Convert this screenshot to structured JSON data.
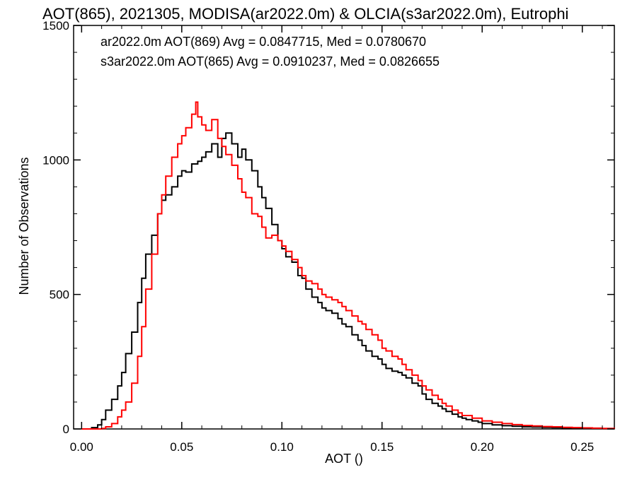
{
  "chart_data": {
    "type": "histogram",
    "title": "AOT(865), 2021305, MODISA(ar2022.0m) & OLCIA(s3ar2022.0m), Eutrophi",
    "xlabel": "AOT ()",
    "ylabel": "Number of Observations",
    "xlim": [
      -0.004,
      0.266
    ],
    "ylim": [
      0,
      1500
    ],
    "xticks": [
      {
        "value": 0.0,
        "label": "0.00"
      },
      {
        "value": 0.05,
        "label": "0.05"
      },
      {
        "value": 0.1,
        "label": "0.10"
      },
      {
        "value": 0.15,
        "label": "0.15"
      },
      {
        "value": 0.2,
        "label": "0.20"
      },
      {
        "value": 0.25,
        "label": "0.25"
      }
    ],
    "yticks": [
      {
        "value": 0,
        "label": "0"
      },
      {
        "value": 500,
        "label": "500"
      },
      {
        "value": 1000,
        "label": "1000"
      },
      {
        "value": 1500,
        "label": "1500"
      }
    ],
    "grid": false,
    "legend_position": "top-left",
    "series": [
      {
        "name": "ar2022.0m AOT(869)",
        "color": "#000000",
        "stats_text": "ar2022.0m AOT(869) Avg = 0.0847715, Med = 0.0780670",
        "points": [
          [
            0.0,
            0
          ],
          [
            0.005,
            5
          ],
          [
            0.008,
            15
          ],
          [
            0.01,
            35
          ],
          [
            0.012,
            70
          ],
          [
            0.015,
            110
          ],
          [
            0.018,
            160
          ],
          [
            0.02,
            210
          ],
          [
            0.022,
            280
          ],
          [
            0.025,
            360
          ],
          [
            0.028,
            470
          ],
          [
            0.03,
            560
          ],
          [
            0.032,
            650
          ],
          [
            0.035,
            720
          ],
          [
            0.038,
            800
          ],
          [
            0.04,
            850
          ],
          [
            0.042,
            870
          ],
          [
            0.045,
            900
          ],
          [
            0.048,
            940
          ],
          [
            0.05,
            960
          ],
          [
            0.052,
            955
          ],
          [
            0.055,
            985
          ],
          [
            0.058,
            995
          ],
          [
            0.06,
            1010
          ],
          [
            0.062,
            1030
          ],
          [
            0.065,
            1060
          ],
          [
            0.068,
            1010
          ],
          [
            0.07,
            1080
          ],
          [
            0.072,
            1100
          ],
          [
            0.075,
            1060
          ],
          [
            0.078,
            1010
          ],
          [
            0.08,
            1040
          ],
          [
            0.082,
            1000
          ],
          [
            0.085,
            960
          ],
          [
            0.088,
            900
          ],
          [
            0.09,
            860
          ],
          [
            0.092,
            820
          ],
          [
            0.095,
            760
          ],
          [
            0.098,
            700
          ],
          [
            0.1,
            670
          ],
          [
            0.102,
            640
          ],
          [
            0.105,
            620
          ],
          [
            0.108,
            570
          ],
          [
            0.11,
            560
          ],
          [
            0.112,
            520
          ],
          [
            0.115,
            490
          ],
          [
            0.118,
            470
          ],
          [
            0.12,
            450
          ],
          [
            0.122,
            440
          ],
          [
            0.125,
            430
          ],
          [
            0.128,
            410
          ],
          [
            0.13,
            390
          ],
          [
            0.132,
            380
          ],
          [
            0.135,
            350
          ],
          [
            0.138,
            330
          ],
          [
            0.14,
            310
          ],
          [
            0.142,
            290
          ],
          [
            0.145,
            270
          ],
          [
            0.148,
            260
          ],
          [
            0.15,
            240
          ],
          [
            0.152,
            225
          ],
          [
            0.155,
            215
          ],
          [
            0.158,
            210
          ],
          [
            0.16,
            200
          ],
          [
            0.162,
            190
          ],
          [
            0.165,
            170
          ],
          [
            0.168,
            160
          ],
          [
            0.17,
            130
          ],
          [
            0.172,
            110
          ],
          [
            0.175,
            95
          ],
          [
            0.178,
            85
          ],
          [
            0.18,
            75
          ],
          [
            0.182,
            65
          ],
          [
            0.185,
            55
          ],
          [
            0.188,
            45
          ],
          [
            0.19,
            40
          ],
          [
            0.192,
            35
          ],
          [
            0.195,
            30
          ],
          [
            0.198,
            25
          ],
          [
            0.2,
            20
          ],
          [
            0.205,
            15
          ],
          [
            0.21,
            12
          ],
          [
            0.215,
            10
          ],
          [
            0.22,
            8
          ],
          [
            0.225,
            7
          ],
          [
            0.23,
            6
          ],
          [
            0.235,
            5
          ],
          [
            0.24,
            4
          ],
          [
            0.245,
            3
          ],
          [
            0.25,
            2
          ],
          [
            0.255,
            2
          ],
          [
            0.26,
            1
          ],
          [
            0.266,
            0
          ]
        ]
      },
      {
        "name": "s3ar2022.0m AOT(865)",
        "color": "#ff0000",
        "stats_text": "s3ar2022.0m AOT(865) Avg = 0.0910237, Med = 0.0826655",
        "points": [
          [
            0.0,
            0
          ],
          [
            0.01,
            2
          ],
          [
            0.012,
            8
          ],
          [
            0.015,
            20
          ],
          [
            0.018,
            45
          ],
          [
            0.02,
            70
          ],
          [
            0.022,
            100
          ],
          [
            0.025,
            170
          ],
          [
            0.028,
            270
          ],
          [
            0.03,
            380
          ],
          [
            0.032,
            520
          ],
          [
            0.035,
            650
          ],
          [
            0.038,
            800
          ],
          [
            0.04,
            870
          ],
          [
            0.042,
            940
          ],
          [
            0.045,
            1010
          ],
          [
            0.048,
            1060
          ],
          [
            0.05,
            1090
          ],
          [
            0.052,
            1120
          ],
          [
            0.055,
            1170
          ],
          [
            0.057,
            1215
          ],
          [
            0.058,
            1160
          ],
          [
            0.06,
            1130
          ],
          [
            0.062,
            1110
          ],
          [
            0.065,
            1150
          ],
          [
            0.068,
            1080
          ],
          [
            0.07,
            1050
          ],
          [
            0.072,
            1020
          ],
          [
            0.075,
            980
          ],
          [
            0.078,
            930
          ],
          [
            0.08,
            880
          ],
          [
            0.082,
            860
          ],
          [
            0.085,
            800
          ],
          [
            0.088,
            790
          ],
          [
            0.09,
            750
          ],
          [
            0.092,
            710
          ],
          [
            0.095,
            720
          ],
          [
            0.098,
            700
          ],
          [
            0.1,
            680
          ],
          [
            0.102,
            660
          ],
          [
            0.105,
            630
          ],
          [
            0.108,
            600
          ],
          [
            0.11,
            570
          ],
          [
            0.112,
            550
          ],
          [
            0.115,
            540
          ],
          [
            0.118,
            520
          ],
          [
            0.12,
            500
          ],
          [
            0.122,
            490
          ],
          [
            0.125,
            480
          ],
          [
            0.128,
            470
          ],
          [
            0.13,
            455
          ],
          [
            0.132,
            440
          ],
          [
            0.135,
            420
          ],
          [
            0.138,
            400
          ],
          [
            0.14,
            390
          ],
          [
            0.142,
            370
          ],
          [
            0.145,
            350
          ],
          [
            0.148,
            330
          ],
          [
            0.15,
            300
          ],
          [
            0.152,
            290
          ],
          [
            0.155,
            270
          ],
          [
            0.158,
            260
          ],
          [
            0.16,
            240
          ],
          [
            0.162,
            220
          ],
          [
            0.165,
            200
          ],
          [
            0.168,
            180
          ],
          [
            0.17,
            160
          ],
          [
            0.172,
            145
          ],
          [
            0.175,
            125
          ],
          [
            0.178,
            110
          ],
          [
            0.18,
            95
          ],
          [
            0.182,
            85
          ],
          [
            0.185,
            70
          ],
          [
            0.188,
            60
          ],
          [
            0.19,
            50
          ],
          [
            0.195,
            40
          ],
          [
            0.2,
            30
          ],
          [
            0.205,
            25
          ],
          [
            0.21,
            20
          ],
          [
            0.215,
            16
          ],
          [
            0.22,
            13
          ],
          [
            0.225,
            11
          ],
          [
            0.23,
            9
          ],
          [
            0.235,
            8
          ],
          [
            0.24,
            6
          ],
          [
            0.245,
            5
          ],
          [
            0.25,
            4
          ],
          [
            0.255,
            3
          ],
          [
            0.26,
            2
          ],
          [
            0.266,
            1
          ]
        ]
      }
    ]
  }
}
